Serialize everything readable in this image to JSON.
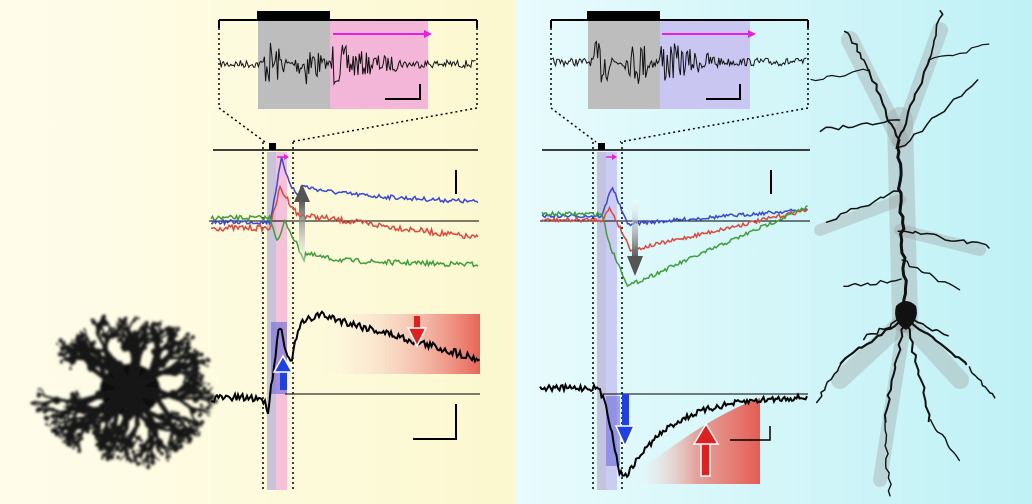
{
  "figure": {
    "panels": [
      {
        "id": "left",
        "cell_type": "astrocyte",
        "background": [
          "#FFFDEB",
          "#FBF8CF"
        ],
        "stim_bar_color": "#000000",
        "zoom_regions": [
          {
            "name": "gray",
            "color": "#BDBDBD"
          },
          {
            "name": "pink",
            "color": "#F4B6D8"
          }
        ],
        "traces": [
          {
            "name": "blue",
            "color": "#3A47D8"
          },
          {
            "name": "red",
            "color": "#E0463C"
          },
          {
            "name": "green",
            "color": "#3E9E3A"
          }
        ],
        "response": {
          "direction": "up",
          "gradient_color": "#E5544A",
          "arrows": [
            "blue-up",
            "red-down",
            "gray-up"
          ]
        }
      },
      {
        "id": "right",
        "cell_type": "pyramidal-neuron",
        "background": [
          "#E8FBFD",
          "#BFF1F5"
        ],
        "stim_bar_color": "#000000",
        "zoom_regions": [
          {
            "name": "gray",
            "color": "#BDBDBD"
          },
          {
            "name": "lavender",
            "color": "#C9C6F2"
          }
        ],
        "traces": [
          {
            "name": "blue",
            "color": "#3A47D8"
          },
          {
            "name": "red",
            "color": "#E0463C"
          },
          {
            "name": "green",
            "color": "#3E9E3A"
          }
        ],
        "response": {
          "direction": "down",
          "gradient_color": "#E5544A",
          "arrows": [
            "blue-down",
            "red-up",
            "gray-down"
          ]
        }
      }
    ],
    "accent_color": "#E61FE0",
    "arrow_colors": {
      "blue": "#1E40E6",
      "red": "#E02020",
      "gray": "#555555"
    }
  }
}
